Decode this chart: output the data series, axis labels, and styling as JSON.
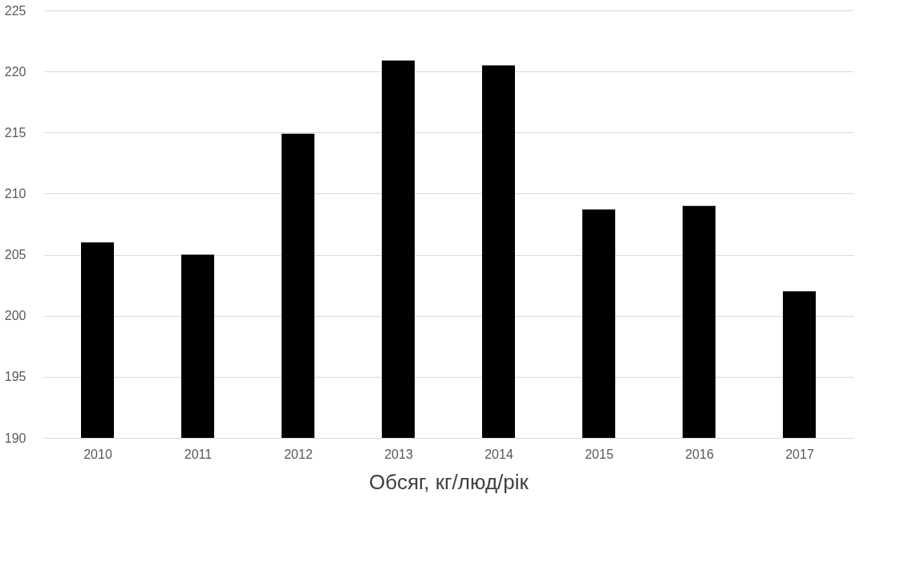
{
  "chart_data": {
    "type": "bar",
    "xlabel": "Обсяг, кг/люд/рік",
    "categories": [
      "2010",
      "2011",
      "2012",
      "2013",
      "2014",
      "2015",
      "2016",
      "2017"
    ],
    "values": [
      206.0,
      205.0,
      214.9,
      220.9,
      220.5,
      208.7,
      209.0,
      202.0
    ],
    "color": "#000000",
    "ylim": [
      190,
      225
    ],
    "yticks": [
      190,
      195,
      200,
      205,
      210,
      215,
      220,
      225
    ],
    "grid": "y"
  }
}
